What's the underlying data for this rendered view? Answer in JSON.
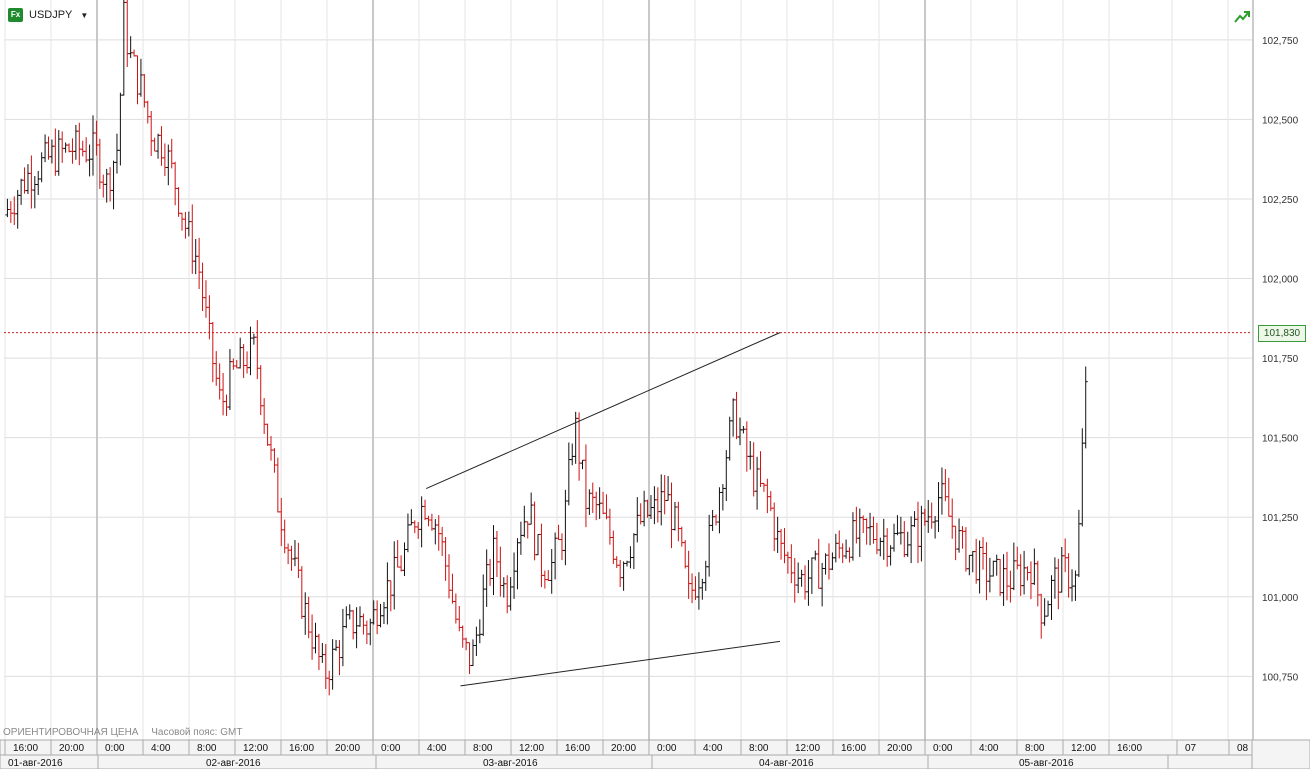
{
  "header": {
    "icon_text": "Fx",
    "symbol": "USDJPY",
    "dropdown_symbol": "▼"
  },
  "footer": {
    "price_mode": "ОРИЕНТИРОВОЧНАЯ ЦЕНА",
    "timezone": "Часовой пояс: GMT"
  },
  "current_price_label": "101,830",
  "colors": {
    "up": "#111111",
    "down": "#cc1111",
    "price_line": "#cc2222",
    "grid": "#dddddd",
    "tag_border": "#3a9a3a"
  },
  "chart_data": {
    "type": "candlestick",
    "instrument": "USDJPY",
    "ylim": [
      100.55,
      102.85
    ],
    "y_ticks": [
      "102,750",
      "102,500",
      "102,250",
      "102,000",
      "101,750",
      "101,500",
      "101,250",
      "101,000",
      "100,750"
    ],
    "y_tick_values": [
      102.75,
      102.5,
      102.25,
      102.0,
      101.75,
      101.5,
      101.25,
      101.0,
      100.75
    ],
    "current_price": 101.83,
    "time_labels": [
      "16:00",
      "20:00",
      "0:00",
      "4:00",
      "8:00",
      "12:00",
      "16:00",
      "20:00",
      "0:00",
      "4:00",
      "8:00",
      "12:00",
      "16:00",
      "20:00",
      "0:00",
      "4:00",
      "8:00",
      "12:00",
      "16:00",
      "20:00",
      "0:00",
      "4:00",
      "8:00",
      "12:00",
      "16:00",
      "07",
      "08"
    ],
    "date_labels": [
      "01-авг-2016",
      "02-авг-2016",
      "03-авг-2016",
      "04-авг-2016",
      "05-авг-2016"
    ],
    "price_path": [
      [
        0,
        102.2
      ],
      [
        2,
        102.32
      ],
      [
        4,
        102.38
      ],
      [
        6,
        102.41
      ],
      [
        8,
        102.4
      ],
      [
        9,
        102.3
      ],
      [
        10,
        102.42
      ],
      [
        10.5,
        102.82
      ],
      [
        11,
        102.7
      ],
      [
        12,
        102.6
      ],
      [
        13,
        102.45
      ],
      [
        14,
        102.42
      ],
      [
        15,
        102.3
      ],
      [
        16,
        102.15
      ],
      [
        17,
        102.05
      ],
      [
        18,
        101.8
      ],
      [
        19,
        101.6
      ],
      [
        20,
        101.7
      ],
      [
        22,
        101.78
      ],
      [
        23,
        101.52
      ],
      [
        24,
        101.3
      ],
      [
        25,
        101.15
      ],
      [
        26,
        101.0
      ],
      [
        27,
        100.88
      ],
      [
        28,
        100.75
      ],
      [
        29,
        100.82
      ],
      [
        30,
        100.9
      ],
      [
        31,
        100.93
      ],
      [
        32,
        100.9
      ],
      [
        33,
        101.0
      ],
      [
        34,
        101.05
      ],
      [
        35,
        101.12
      ],
      [
        36,
        101.25
      ],
      [
        37,
        101.3
      ],
      [
        38,
        101.22
      ],
      [
        39,
        101.05
      ],
      [
        40,
        100.85
      ],
      [
        41,
        100.8
      ],
      [
        42,
        101.0
      ],
      [
        43,
        101.15
      ],
      [
        44,
        101.0
      ],
      [
        45,
        101.2
      ],
      [
        46,
        101.28
      ],
      [
        47,
        101.1
      ],
      [
        48,
        101.1
      ],
      [
        49,
        101.2
      ],
      [
        50,
        101.55
      ],
      [
        51,
        101.3
      ],
      [
        52,
        101.28
      ],
      [
        53,
        101.2
      ],
      [
        54,
        101.1
      ],
      [
        55,
        101.18
      ],
      [
        56,
        101.25
      ],
      [
        57,
        101.27
      ],
      [
        58,
        101.32
      ],
      [
        59,
        101.2
      ],
      [
        60,
        101.0
      ],
      [
        61,
        101.08
      ],
      [
        62,
        101.2
      ],
      [
        63,
        101.4
      ],
      [
        64,
        101.58
      ],
      [
        65,
        101.45
      ],
      [
        66,
        101.35
      ],
      [
        67,
        101.3
      ],
      [
        68,
        101.15
      ],
      [
        69,
        101.1
      ],
      [
        70,
        101.05
      ],
      [
        72,
        101.1
      ],
      [
        74,
        101.18
      ],
      [
        76,
        101.2
      ],
      [
        78,
        101.18
      ],
      [
        80,
        101.2
      ],
      [
        82,
        101.32
      ],
      [
        84,
        101.15
      ],
      [
        86,
        101.08
      ],
      [
        88,
        101.05
      ],
      [
        90,
        101.1
      ],
      [
        91,
        100.95
      ],
      [
        92,
        101.05
      ],
      [
        93,
        101.08
      ],
      [
        94,
        101.05
      ],
      [
        95,
        101.85
      ]
    ],
    "annotations": [
      {
        "type": "trendline",
        "from": [
          37,
          101.34
        ],
        "to": [
          68,
          101.83
        ]
      },
      {
        "type": "trendline",
        "from": [
          40,
          100.72
        ],
        "to": [
          68,
          100.86
        ]
      }
    ]
  }
}
